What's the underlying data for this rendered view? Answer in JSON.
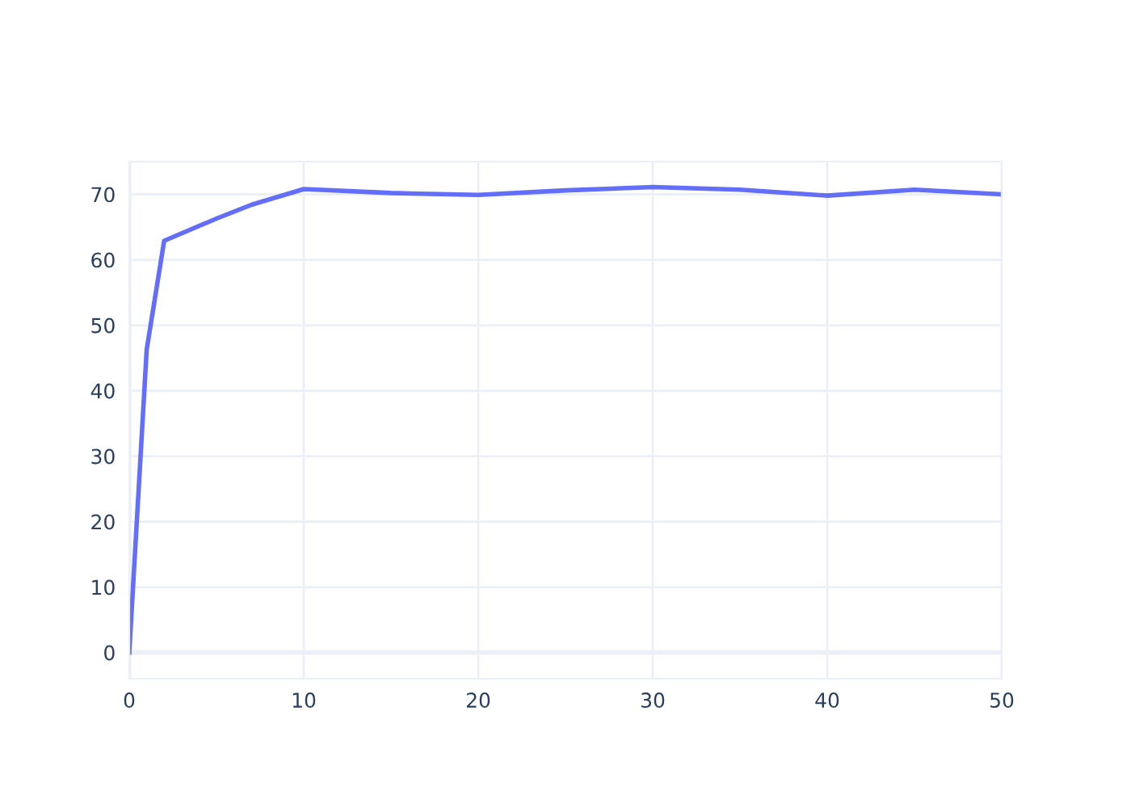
{
  "chart_data": {
    "type": "line",
    "x": [
      0,
      1,
      2,
      5,
      7,
      10,
      15,
      20,
      25,
      30,
      35,
      40,
      45,
      50
    ],
    "series": [
      {
        "color": "#636efa",
        "values": [
          0,
          46.3,
          62.9,
          66.3,
          68.4,
          70.8,
          70.2,
          69.9,
          70.6,
          71.1,
          70.7,
          69.8,
          70.7,
          70.0
        ]
      }
    ],
    "xlim": [
      0,
      50
    ],
    "xticks": [
      0,
      10,
      20,
      30,
      40,
      50
    ],
    "ylim": [
      -4,
      75
    ],
    "yticks": [
      0,
      10,
      20,
      30,
      40,
      50,
      60,
      70
    ],
    "grid": true,
    "legend": false,
    "marker": "none",
    "line_style": "solid"
  }
}
